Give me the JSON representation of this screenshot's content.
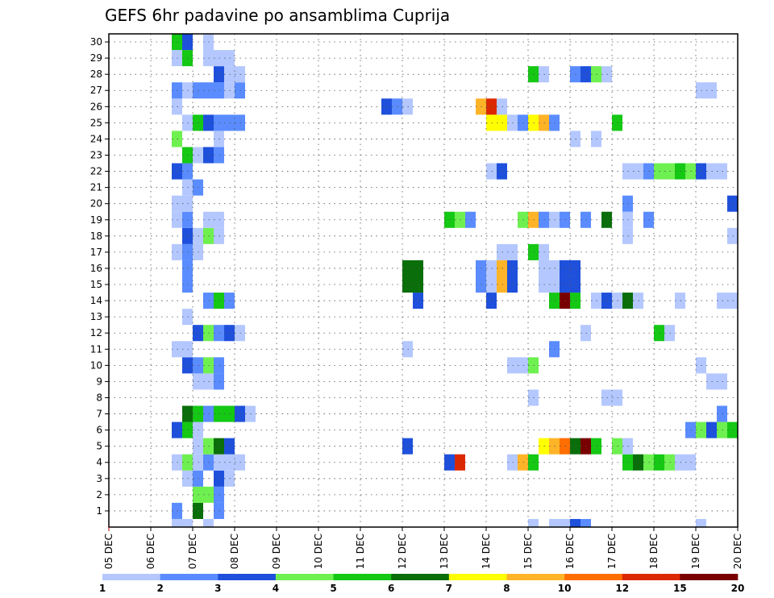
{
  "chart_data": {
    "type": "heatmap",
    "title": "GEFS 6hr padavine po ansamblima Cuprija",
    "y_tick_labels": [
      "1",
      "2",
      "3",
      "4",
      "5",
      "6",
      "7",
      "8",
      "9",
      "10",
      "11",
      "12",
      "13",
      "14",
      "15",
      "16",
      "17",
      "18",
      "19",
      "20",
      "21",
      "22",
      "23",
      "24",
      "25",
      "26",
      "27",
      "28",
      "29",
      "30"
    ],
    "x_tick_labels": [
      "05 DEC",
      "06 DEC",
      "07 DEC",
      "08 DEC",
      "09 DEC",
      "10 DEC",
      "11 DEC",
      "12 DEC",
      "13 DEC",
      "14 DEC",
      "15 DEC",
      "16 DEC",
      "17 DEC",
      "18 DEC",
      "19 DEC",
      "20 DEC"
    ],
    "x_time_range": [
      "05 DEC 00Z",
      "20 DEC 00Z"
    ],
    "time_step_hours": 6,
    "grid": true,
    "legend": {
      "placement": "bottom",
      "colors": [
        "#b4c8ff",
        "#5a8cff",
        "#1e50dc",
        "#6ef050",
        "#14c814",
        "#0a6e0a",
        "#ffff00",
        "#ffb428",
        "#ff6e00",
        "#dc2800",
        "#780000"
      ],
      "labels": [
        "1",
        "2",
        "3",
        "4",
        "5",
        "6",
        "7",
        "8",
        "10",
        "12",
        "15",
        "20"
      ]
    },
    "cells": [
      [
        0,
        6.5,
        2
      ],
      [
        0,
        7,
        6
      ],
      [
        0,
        7.5,
        2
      ],
      [
        1,
        7,
        4
      ],
      [
        1,
        7.25,
        4
      ],
      [
        1,
        7.5,
        2
      ],
      [
        2,
        6.75,
        1
      ],
      [
        2,
        7,
        2
      ],
      [
        2,
        7.5,
        3
      ],
      [
        2,
        7.75,
        1
      ],
      [
        3,
        6.5,
        1
      ],
      [
        3,
        6.75,
        4
      ],
      [
        3,
        7,
        1
      ],
      [
        3,
        7.25,
        2
      ],
      [
        3,
        7.5,
        1
      ],
      [
        3,
        7.75,
        1
      ],
      [
        3,
        8,
        1
      ],
      [
        3,
        13,
        3
      ],
      [
        3,
        13.25,
        10
      ],
      [
        3,
        14.5,
        1
      ],
      [
        3,
        14.75,
        8
      ],
      [
        3,
        15,
        5
      ],
      [
        3,
        17.25,
        5
      ],
      [
        3,
        17.5,
        6
      ],
      [
        3,
        17.75,
        4
      ],
      [
        3,
        18,
        5
      ],
      [
        3,
        18.25,
        4
      ],
      [
        3,
        18.5,
        1
      ],
      [
        3,
        18.75,
        1
      ],
      [
        4,
        7,
        1
      ],
      [
        4,
        7.25,
        4
      ],
      [
        4,
        7.5,
        6
      ],
      [
        4,
        7.75,
        3
      ],
      [
        4,
        12,
        3
      ],
      [
        4,
        15.25,
        7
      ],
      [
        4,
        15.5,
        8
      ],
      [
        4,
        15.75,
        9
      ],
      [
        4,
        16,
        6
      ],
      [
        4,
        16.25,
        11
      ],
      [
        4,
        16.5,
        5
      ],
      [
        4,
        17,
        4
      ],
      [
        4,
        17.25,
        1
      ],
      [
        5,
        6.5,
        3
      ],
      [
        5,
        6.75,
        5
      ],
      [
        5,
        7,
        1
      ],
      [
        5,
        18.75,
        2
      ],
      [
        5,
        19,
        4
      ],
      [
        5,
        19.25,
        3
      ],
      [
        5,
        19.5,
        4
      ],
      [
        5,
        19.75,
        5
      ],
      [
        6,
        6.75,
        6
      ],
      [
        6,
        7,
        5
      ],
      [
        6,
        7.25,
        2
      ],
      [
        6,
        7.5,
        5
      ],
      [
        6,
        7.75,
        5
      ],
      [
        6,
        8,
        3
      ],
      [
        6,
        8.25,
        1
      ],
      [
        6,
        19.5,
        2
      ],
      [
        7,
        15,
        1
      ],
      [
        7,
        16.75,
        1
      ],
      [
        7,
        17,
        1
      ],
      [
        8,
        7,
        1
      ],
      [
        8,
        7.25,
        1
      ],
      [
        8,
        7.5,
        2
      ],
      [
        8,
        19.25,
        1
      ],
      [
        8,
        19.5,
        1
      ],
      [
        9,
        6.75,
        3
      ],
      [
        9,
        7,
        2
      ],
      [
        9,
        7.25,
        4
      ],
      [
        9,
        7.5,
        2
      ],
      [
        9,
        14.5,
        1
      ],
      [
        9,
        14.75,
        1
      ],
      [
        9,
        15,
        4
      ],
      [
        9,
        19,
        1
      ],
      [
        10,
        6.5,
        1
      ],
      [
        10,
        6.75,
        1
      ],
      [
        10,
        12,
        1
      ],
      [
        10,
        15.5,
        2
      ],
      [
        11,
        7,
        3
      ],
      [
        11,
        7.25,
        4
      ],
      [
        11,
        7.5,
        2
      ],
      [
        11,
        7.75,
        3
      ],
      [
        11,
        8,
        1
      ],
      [
        11,
        16.25,
        1
      ],
      [
        11,
        18,
        5
      ],
      [
        11,
        18.25,
        1
      ],
      [
        12,
        6.75,
        1
      ],
      [
        13,
        7.25,
        2
      ],
      [
        13,
        7.5,
        5
      ],
      [
        13,
        7.75,
        2
      ],
      [
        13,
        12.25,
        3
      ],
      [
        13,
        14,
        3
      ],
      [
        13,
        15.5,
        5
      ],
      [
        13,
        15.75,
        11
      ],
      [
        13,
        16,
        5
      ],
      [
        13,
        16.5,
        1
      ],
      [
        13,
        16.75,
        3
      ],
      [
        13,
        17,
        1
      ],
      [
        13,
        17.25,
        6
      ],
      [
        13,
        17.5,
        1
      ],
      [
        13,
        18.5,
        1
      ],
      [
        13,
        19.5,
        1
      ],
      [
        13,
        19.75,
        1
      ],
      [
        14,
        6.75,
        2
      ],
      [
        14,
        12,
        6
      ],
      [
        14,
        12.25,
        6
      ],
      [
        14,
        13.75,
        2
      ],
      [
        14,
        14,
        1
      ],
      [
        14,
        14.25,
        8
      ],
      [
        14,
        14.5,
        3
      ],
      [
        14,
        15.25,
        1
      ],
      [
        14,
        15.5,
        1
      ],
      [
        14,
        15.75,
        3
      ],
      [
        14,
        16,
        3
      ],
      [
        15,
        6.75,
        2
      ],
      [
        15,
        12,
        6
      ],
      [
        15,
        12.25,
        6
      ],
      [
        15,
        13.75,
        2
      ],
      [
        15,
        14,
        1
      ],
      [
        15,
        14.25,
        8
      ],
      [
        15,
        14.5,
        3
      ],
      [
        15,
        15.25,
        1
      ],
      [
        15,
        15.5,
        1
      ],
      [
        15,
        15.75,
        3
      ],
      [
        15,
        16,
        3
      ],
      [
        16,
        6.5,
        1
      ],
      [
        16,
        6.75,
        2
      ],
      [
        16,
        7,
        1
      ],
      [
        16,
        14.25,
        1
      ],
      [
        16,
        14.5,
        1
      ],
      [
        16,
        15,
        5
      ],
      [
        16,
        15.25,
        1
      ],
      [
        17,
        6.75,
        3
      ],
      [
        17,
        7,
        1
      ],
      [
        17,
        7.25,
        4
      ],
      [
        17,
        7.5,
        1
      ],
      [
        17,
        17.25,
        1
      ],
      [
        17,
        19.75,
        1
      ],
      [
        18,
        6.5,
        1
      ],
      [
        18,
        6.75,
        2
      ],
      [
        18,
        7.25,
        1
      ],
      [
        18,
        7.5,
        1
      ],
      [
        18,
        13,
        5
      ],
      [
        18,
        13.25,
        4
      ],
      [
        18,
        13.5,
        2
      ],
      [
        18,
        14.75,
        4
      ],
      [
        18,
        15,
        8
      ],
      [
        18,
        15.25,
        2
      ],
      [
        18,
        15.5,
        1
      ],
      [
        18,
        15.75,
        2
      ],
      [
        18,
        16.25,
        2
      ],
      [
        18,
        16.75,
        6
      ],
      [
        18,
        17.25,
        1
      ],
      [
        18,
        17.75,
        2
      ],
      [
        19,
        6.5,
        1
      ],
      [
        19,
        6.75,
        1
      ],
      [
        19,
        17.25,
        2
      ],
      [
        19,
        19.75,
        3
      ],
      [
        20,
        6.75,
        1
      ],
      [
        20,
        7,
        2
      ],
      [
        21,
        6.5,
        3
      ],
      [
        21,
        6.75,
        2
      ],
      [
        21,
        14,
        1
      ],
      [
        21,
        14.25,
        3
      ],
      [
        21,
        17.25,
        1
      ],
      [
        21,
        17.5,
        1
      ],
      [
        21,
        17.75,
        2
      ],
      [
        21,
        18,
        4
      ],
      [
        21,
        18.25,
        4
      ],
      [
        21,
        18.5,
        5
      ],
      [
        21,
        18.75,
        4
      ],
      [
        21,
        19,
        3
      ],
      [
        21,
        19.25,
        1
      ],
      [
        21,
        19.5,
        1
      ],
      [
        22,
        6.75,
        5
      ],
      [
        22,
        7,
        1
      ],
      [
        22,
        7.25,
        3
      ],
      [
        22,
        7.5,
        2
      ],
      [
        23,
        6.5,
        4
      ],
      [
        23,
        7.5,
        1
      ],
      [
        23,
        16,
        1
      ],
      [
        23,
        16.5,
        1
      ],
      [
        24,
        6.75,
        1
      ],
      [
        24,
        7,
        5
      ],
      [
        24,
        7.25,
        3
      ],
      [
        24,
        7.5,
        2
      ],
      [
        24,
        7.75,
        2
      ],
      [
        24,
        8,
        2
      ],
      [
        24,
        14,
        7
      ],
      [
        24,
        14.25,
        7
      ],
      [
        24,
        14.5,
        1
      ],
      [
        24,
        14.75,
        2
      ],
      [
        24,
        15,
        7
      ],
      [
        24,
        15.25,
        8
      ],
      [
        24,
        15.5,
        2
      ],
      [
        24,
        17,
        5
      ],
      [
        25,
        6.5,
        1
      ],
      [
        25,
        11.5,
        3
      ],
      [
        25,
        11.75,
        2
      ],
      [
        25,
        12,
        1
      ],
      [
        25,
        13.75,
        8
      ],
      [
        25,
        14,
        10
      ],
      [
        25,
        14.25,
        1
      ],
      [
        26,
        6.5,
        2
      ],
      [
        26,
        6.75,
        1
      ],
      [
        26,
        7,
        2
      ],
      [
        26,
        7.25,
        2
      ],
      [
        26,
        7.5,
        2
      ],
      [
        26,
        7.75,
        1
      ],
      [
        26,
        8,
        2
      ],
      [
        26,
        19,
        1
      ],
      [
        26,
        19.25,
        1
      ],
      [
        27,
        7.5,
        3
      ],
      [
        27,
        7.75,
        1
      ],
      [
        27,
        8,
        1
      ],
      [
        27,
        15,
        5
      ],
      [
        27,
        15.25,
        1
      ],
      [
        27,
        16,
        2
      ],
      [
        27,
        16.25,
        3
      ],
      [
        27,
        16.5,
        4
      ],
      [
        27,
        16.75,
        1
      ],
      [
        28,
        6.5,
        1
      ],
      [
        28,
        6.75,
        5
      ],
      [
        28,
        7.25,
        1
      ],
      [
        28,
        7.5,
        1
      ],
      [
        28,
        7.75,
        1
      ],
      [
        29,
        6.5,
        5
      ],
      [
        29,
        6.75,
        3
      ],
      [
        29,
        7.25,
        1
      ]
    ],
    "bottom_row_cells": [
      [
        6.5,
        1
      ],
      [
        6.75,
        1
      ],
      [
        7.25,
        1
      ],
      [
        15,
        1
      ],
      [
        15.5,
        1
      ],
      [
        15.75,
        1
      ],
      [
        16,
        3
      ],
      [
        16.25,
        2
      ],
      [
        19,
        1
      ]
    ]
  }
}
